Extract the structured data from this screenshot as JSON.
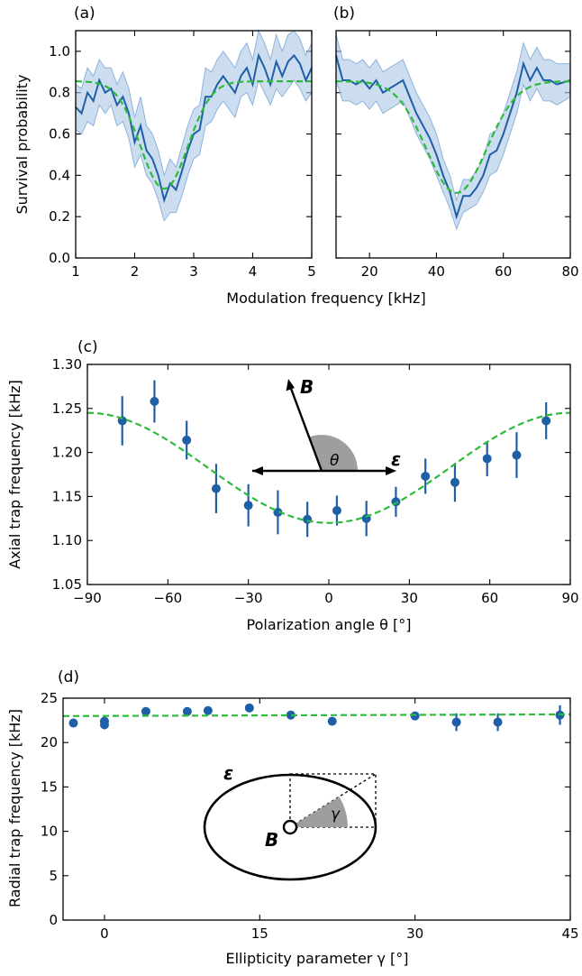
{
  "colors": {
    "data": "#1f5fa6",
    "band": "#aac6e6",
    "band_edge": "#8fb3dc",
    "fit": "#2dbb3c",
    "shade": "#9e9e9e"
  },
  "chart_data": [
    {
      "id": "a",
      "panel_label": "(a)",
      "type": "line",
      "ylabel": "Survival probability",
      "xlim": [
        1,
        5
      ],
      "ylim": [
        0,
        1.1
      ],
      "xticks": [
        1,
        2,
        3,
        4,
        5
      ],
      "yticks": [
        0.0,
        0.2,
        0.4,
        0.6,
        0.8,
        1.0
      ],
      "ytick_labels": [
        "0.0",
        "0.2",
        "0.4",
        "0.6",
        "0.8",
        "1.0"
      ],
      "series": [
        {
          "kind": "data_with_band",
          "x": [
            1.0,
            1.1,
            1.2,
            1.3,
            1.4,
            1.5,
            1.6,
            1.7,
            1.8,
            1.9,
            2.0,
            2.1,
            2.2,
            2.3,
            2.4,
            2.5,
            2.6,
            2.7,
            2.8,
            2.9,
            3.0,
            3.1,
            3.2,
            3.3,
            3.4,
            3.5,
            3.6,
            3.7,
            3.8,
            3.9,
            4.0,
            4.1,
            4.2,
            4.3,
            4.4,
            4.5,
            4.6,
            4.7,
            4.8,
            4.9,
            5.0
          ],
          "y": [
            0.73,
            0.7,
            0.8,
            0.76,
            0.86,
            0.8,
            0.82,
            0.74,
            0.78,
            0.7,
            0.56,
            0.64,
            0.52,
            0.48,
            0.4,
            0.28,
            0.36,
            0.33,
            0.42,
            0.52,
            0.6,
            0.62,
            0.78,
            0.78,
            0.84,
            0.88,
            0.84,
            0.8,
            0.88,
            0.92,
            0.84,
            0.98,
            0.92,
            0.84,
            0.95,
            0.88,
            0.95,
            0.98,
            0.94,
            0.86,
            0.92
          ],
          "band_low": [
            0.62,
            0.6,
            0.66,
            0.64,
            0.74,
            0.7,
            0.74,
            0.64,
            0.66,
            0.58,
            0.44,
            0.5,
            0.4,
            0.36,
            0.28,
            0.18,
            0.22,
            0.22,
            0.3,
            0.4,
            0.48,
            0.5,
            0.64,
            0.66,
            0.72,
            0.76,
            0.72,
            0.68,
            0.78,
            0.8,
            0.74,
            0.86,
            0.8,
            0.74,
            0.82,
            0.78,
            0.82,
            0.86,
            0.82,
            0.76,
            0.8
          ],
          "band_high": [
            0.84,
            0.82,
            0.92,
            0.88,
            0.96,
            0.92,
            0.92,
            0.84,
            0.9,
            0.82,
            0.68,
            0.78,
            0.64,
            0.6,
            0.52,
            0.4,
            0.48,
            0.44,
            0.54,
            0.64,
            0.72,
            0.74,
            0.92,
            0.9,
            0.96,
            1.0,
            0.96,
            0.92,
            1.0,
            1.04,
            0.96,
            1.1,
            1.04,
            0.96,
            1.08,
            1.0,
            1.08,
            1.1,
            1.06,
            0.98,
            1.04
          ]
        },
        {
          "kind": "fit",
          "shape": "gaussian_dip",
          "baseline": 0.855,
          "depth": 0.52,
          "center": 2.5,
          "sigma": 0.4
        }
      ]
    },
    {
      "id": "b",
      "panel_label": "(b)",
      "type": "line",
      "ylabel": "",
      "xlim": [
        10,
        80
      ],
      "ylim": [
        0,
        1.1
      ],
      "xticks": [
        20,
        40,
        60,
        80
      ],
      "yticks": [
        0.0,
        0.2,
        0.4,
        0.6,
        0.8,
        1.0
      ],
      "series": [
        {
          "kind": "data_with_band",
          "x": [
            10,
            12,
            14,
            16,
            18,
            20,
            22,
            24,
            26,
            28,
            30,
            32,
            34,
            36,
            38,
            40,
            42,
            44,
            46,
            48,
            50,
            52,
            54,
            56,
            58,
            60,
            62,
            64,
            66,
            68,
            70,
            72,
            74,
            76,
            78,
            80
          ],
          "y": [
            0.98,
            0.86,
            0.86,
            0.84,
            0.86,
            0.82,
            0.86,
            0.8,
            0.82,
            0.84,
            0.86,
            0.78,
            0.7,
            0.64,
            0.58,
            0.5,
            0.4,
            0.32,
            0.2,
            0.3,
            0.3,
            0.34,
            0.4,
            0.5,
            0.52,
            0.6,
            0.7,
            0.8,
            0.94,
            0.86,
            0.92,
            0.86,
            0.86,
            0.84,
            0.85,
            0.86
          ],
          "band_low": [
            0.86,
            0.76,
            0.76,
            0.74,
            0.76,
            0.72,
            0.76,
            0.7,
            0.72,
            0.74,
            0.76,
            0.68,
            0.6,
            0.54,
            0.48,
            0.4,
            0.32,
            0.24,
            0.14,
            0.22,
            0.24,
            0.26,
            0.32,
            0.4,
            0.42,
            0.5,
            0.6,
            0.7,
            0.84,
            0.76,
            0.82,
            0.76,
            0.76,
            0.74,
            0.76,
            0.78
          ],
          "band_high": [
            1.08,
            0.96,
            0.96,
            0.94,
            0.96,
            0.92,
            0.96,
            0.9,
            0.92,
            0.94,
            0.96,
            0.88,
            0.8,
            0.74,
            0.68,
            0.6,
            0.48,
            0.4,
            0.28,
            0.38,
            0.38,
            0.42,
            0.48,
            0.6,
            0.62,
            0.7,
            0.8,
            0.9,
            1.04,
            0.96,
            1.02,
            0.96,
            0.96,
            0.94,
            0.94,
            0.94
          ]
        },
        {
          "kind": "fit",
          "shape": "gaussian_dip",
          "baseline": 0.855,
          "depth": 0.54,
          "center": 46,
          "sigma": 9
        }
      ]
    },
    {
      "id": "c",
      "panel_label": "(c)",
      "type": "scatter",
      "xlabel": "Polarization angle θ [°]",
      "ylabel": "Axial trap frequency [kHz]",
      "xlim": [
        -90,
        90
      ],
      "ylim": [
        1.05,
        1.3
      ],
      "xticks": [
        -90,
        -60,
        -30,
        0,
        30,
        60,
        90
      ],
      "xtick_labels": [
        "−90",
        "−60",
        "−30",
        "0",
        "30",
        "60",
        "90"
      ],
      "yticks": [
        1.05,
        1.1,
        1.15,
        1.2,
        1.25,
        1.3
      ],
      "ytick_labels": [
        "1.05",
        "1.10",
        "1.15",
        "1.20",
        "1.25",
        "1.30"
      ],
      "series": [
        {
          "kind": "points_with_errorbars",
          "x": [
            -77,
            -65,
            -53,
            -42,
            -30,
            -19,
            -8,
            3,
            14,
            25,
            36,
            47,
            59,
            70,
            81
          ],
          "y": [
            1.236,
            1.258,
            1.214,
            1.159,
            1.14,
            1.132,
            1.124,
            1.134,
            1.125,
            1.144,
            1.173,
            1.166,
            1.193,
            1.197,
            1.236
          ],
          "yerr": [
            0.028,
            0.024,
            0.022,
            0.028,
            0.024,
            0.025,
            0.02,
            0.017,
            0.02,
            0.017,
            0.02,
            0.022,
            0.02,
            0.026,
            0.021
          ]
        },
        {
          "kind": "fit",
          "shape": "cos2",
          "offset": 1.12,
          "amplitude": 0.125,
          "center": 0
        }
      ],
      "inset": {
        "vector_1": "B",
        "vector_2": "ε",
        "angle": "θ"
      }
    },
    {
      "id": "d",
      "panel_label": "(d)",
      "type": "scatter",
      "xlabel": "Ellipticity parameter γ [°]",
      "ylabel": "Radial trap frequency [kHz]",
      "xlim": [
        -4,
        45
      ],
      "ylim": [
        0,
        25
      ],
      "xticks": [
        0,
        15,
        30,
        45
      ],
      "yticks": [
        0,
        5,
        10,
        15,
        20,
        25
      ],
      "series": [
        {
          "kind": "points_with_errorbars",
          "x": [
            -3,
            0,
            0,
            4,
            8,
            10,
            14,
            18,
            22,
            30,
            34,
            38,
            44
          ],
          "y": [
            22.2,
            22.4,
            22.0,
            23.5,
            23.5,
            23.6,
            23.9,
            23.1,
            22.4,
            23.0,
            22.3,
            22.3,
            23.1
          ],
          "yerr": [
            0.3,
            0.5,
            0.5,
            0.3,
            0.3,
            0.3,
            0.4,
            0.3,
            0.3,
            0.4,
            1.0,
            1.0,
            1.1
          ]
        },
        {
          "kind": "fit",
          "shape": "linear",
          "intercept": 23.0,
          "slope": 0.004
        }
      ],
      "inset": {
        "vector_1": "ε",
        "vector_2": "B",
        "angle": "γ"
      }
    }
  ]
}
